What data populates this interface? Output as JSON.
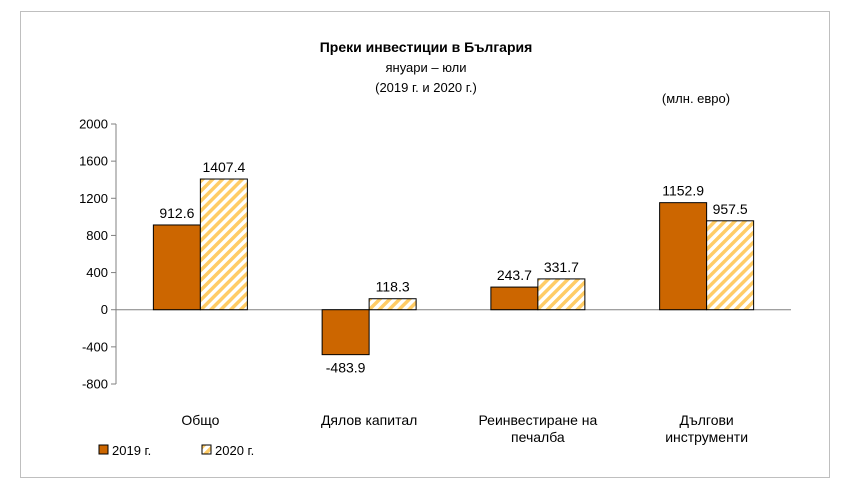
{
  "chart_data": {
    "type": "bar",
    "title": "Преки  инвестиции в България",
    "subtitle_lines": [
      "януари – юли",
      "(2019 г. и 2020 г.)"
    ],
    "unit_label": "(млн. евро)",
    "categories": [
      [
        "Общо"
      ],
      [
        "Дялов капитал"
      ],
      [
        "Реинвестиране на",
        "печалба"
      ],
      [
        "Дългови",
        "инструменти"
      ]
    ],
    "series": [
      {
        "name": "2019 г.",
        "values": [
          912.6,
          -483.9,
          243.7,
          1152.9
        ],
        "labels": [
          "912.6",
          "-483.9",
          "243.7",
          "1152.9"
        ],
        "color": "#cc6600",
        "pattern": "solid"
      },
      {
        "name": "2020 г.",
        "values": [
          1407.4,
          118.3,
          331.7,
          957.5
        ],
        "labels": [
          "1407.4",
          "118.3",
          "331.7",
          "957.5"
        ],
        "color": "#ffcc66",
        "pattern": "hatched"
      }
    ],
    "ylim": [
      -800,
      2000
    ],
    "yticks": [
      2000,
      1600,
      1200,
      800,
      400,
      0,
      -400,
      -800
    ],
    "grid": false,
    "legend_position": "bottom-left"
  }
}
